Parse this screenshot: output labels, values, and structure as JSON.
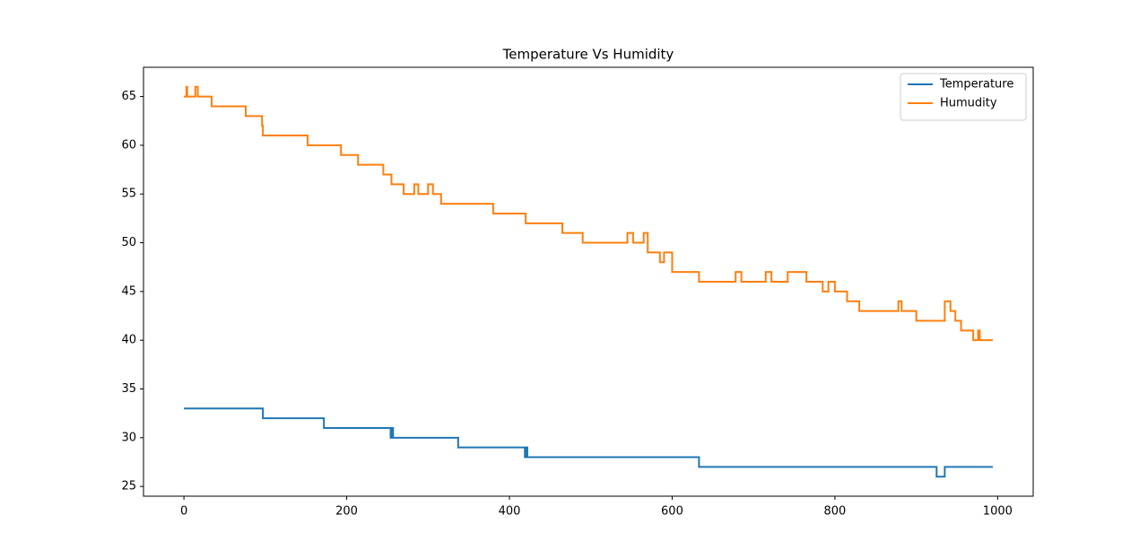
{
  "chart_data": {
    "type": "line",
    "title": "Temperature Vs Humidity",
    "xlim": [
      -49.7,
      1043.7
    ],
    "ylim": [
      24,
      68
    ],
    "xticks": [
      0,
      200,
      400,
      600,
      800,
      1000
    ],
    "yticks": [
      25,
      30,
      35,
      40,
      45,
      50,
      55,
      60,
      65
    ],
    "legend": "upper right",
    "grid": false,
    "series": [
      {
        "name": "Temperature",
        "color": "#1f77b4",
        "x": [
          0,
          97,
          97,
          172,
          172,
          254,
          254,
          256,
          256,
          257,
          257,
          337,
          337,
          419,
          419,
          420,
          420,
          422,
          422,
          633,
          633,
          925,
          925,
          935,
          935,
          994
        ],
        "values": [
          33,
          33,
          32,
          32,
          31,
          31,
          30,
          30,
          31,
          31,
          30,
          30,
          29,
          29,
          28,
          28,
          29,
          29,
          28,
          28,
          27,
          27,
          26,
          26,
          27,
          27
        ]
      },
      {
        "name": "Humudity",
        "color": "#ff7f0e",
        "x": [
          0,
          3,
          3,
          4,
          4,
          14,
          14,
          17,
          17,
          34,
          34,
          76,
          76,
          96,
          96,
          97,
          97,
          152,
          152,
          193,
          193,
          214,
          214,
          245,
          245,
          255,
          255,
          270,
          270,
          283,
          283,
          288,
          288,
          300,
          300,
          306,
          306,
          316,
          316,
          380,
          380,
          420,
          420,
          465,
          465,
          490,
          490,
          545,
          545,
          552,
          552,
          565,
          565,
          570,
          570,
          585,
          585,
          590,
          590,
          600,
          600,
          633,
          633,
          678,
          678,
          685,
          685,
          715,
          715,
          722,
          722,
          742,
          742,
          765,
          765,
          785,
          785,
          792,
          792,
          800,
          800,
          815,
          815,
          830,
          830,
          878,
          878,
          882,
          882,
          900,
          900,
          935,
          935,
          942,
          942,
          948,
          948,
          955,
          955,
          970,
          970,
          976,
          976,
          978,
          978,
          994
        ],
        "values": [
          65,
          65,
          66,
          66,
          65,
          65,
          66,
          66,
          65,
          65,
          64,
          64,
          63,
          63,
          62,
          62,
          61,
          61,
          60,
          60,
          59,
          59,
          58,
          58,
          57,
          57,
          56,
          56,
          55,
          55,
          56,
          56,
          55,
          55,
          56,
          56,
          55,
          55,
          54,
          54,
          53,
          53,
          52,
          52,
          51,
          51,
          50,
          50,
          51,
          51,
          50,
          50,
          51,
          51,
          49,
          49,
          48,
          48,
          49,
          49,
          47,
          47,
          46,
          46,
          47,
          47,
          46,
          46,
          47,
          47,
          46,
          46,
          47,
          47,
          46,
          46,
          45,
          45,
          46,
          46,
          45,
          45,
          44,
          44,
          43,
          43,
          44,
          44,
          43,
          43,
          42,
          42,
          44,
          44,
          43,
          43,
          42,
          42,
          41,
          41,
          40,
          40,
          41,
          41,
          40,
          40
        ]
      }
    ]
  }
}
